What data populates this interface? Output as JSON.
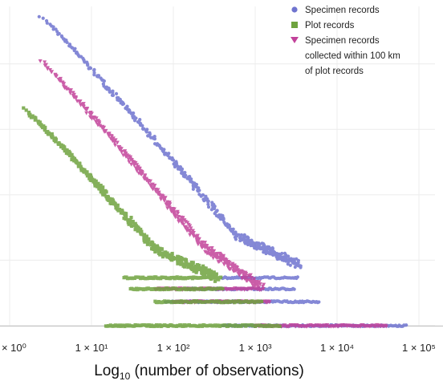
{
  "chart_data": {
    "type": "scatter",
    "title": "",
    "xlabel": {
      "prefix": "Log",
      "subscript": "10",
      "suffix": " (number of observations)"
    },
    "x_scale": "log",
    "xlim": [
      1,
      100000
    ],
    "ylim": [
      0,
      1
    ],
    "grid": {
      "horizontal": true,
      "vertical": true
    },
    "x_tick_labels": [
      "1 × 10⁰",
      "1 × 10¹",
      "1 × 10²",
      "1 × 10³",
      "1 × 10⁴",
      "1 × 10⁵"
    ],
    "y_tick_labels": [],
    "legend": {
      "placement": "top-right",
      "entries": [
        {
          "lines": [
            "Specimen records"
          ],
          "color": "#6f74cf",
          "marker": "circle"
        },
        {
          "lines": [
            "Plot records"
          ],
          "color": "#6fa33f",
          "marker": "square"
        },
        {
          "lines": [
            "Specimen records",
            "collected within 100 km",
            "of plot records"
          ],
          "color": "#c2429a",
          "marker": "triangle-down"
        }
      ]
    },
    "series": [
      {
        "legend_index": 0,
        "color": "#6f74cf",
        "marker": "circle",
        "curve": {
          "x_start": 2.4,
          "y_start": 0.97,
          "x_knee": 600,
          "y_knee": 0.28,
          "x_end": 3500,
          "y_end": 0.19
        },
        "bands": [
          {
            "y": 0.15,
            "x_from": 400,
            "x_to": 3300
          },
          {
            "y": 0.115,
            "x_from": 150,
            "x_to": 3000
          },
          {
            "y": 0.075,
            "x_from": 80,
            "x_to": 6000
          },
          {
            "y": 0.0,
            "x_from": 400,
            "x_to": 70000
          }
        ]
      },
      {
        "legend_index": 2,
        "color": "#c2429a",
        "marker": "triangle-down",
        "curve": {
          "x_start": 2.4,
          "y_start": 0.83,
          "x_knee": 230,
          "y_knee": 0.25,
          "x_end": 1200,
          "y_end": 0.12
        },
        "bands": [
          {
            "y": 0.115,
            "x_from": 60,
            "x_to": 1100
          },
          {
            "y": 0.075,
            "x_from": 100,
            "x_to": 1500
          },
          {
            "y": 0.0,
            "x_from": 1000,
            "x_to": 40000
          }
        ]
      },
      {
        "legend_index": 1,
        "color": "#6fa33f",
        "marker": "square",
        "curve": {
          "x_start": 1.5,
          "y_start": 0.68,
          "x_knee": 60,
          "y_knee": 0.24,
          "x_end": 350,
          "y_end": 0.15
        },
        "bands": [
          {
            "y": 0.15,
            "x_from": 25,
            "x_to": 380
          },
          {
            "y": 0.115,
            "x_from": 30,
            "x_to": 400
          },
          {
            "y": 0.075,
            "x_from": 60,
            "x_to": 1200
          },
          {
            "y": 0.0,
            "x_from": 15,
            "x_to": 2000
          }
        ]
      }
    ]
  }
}
